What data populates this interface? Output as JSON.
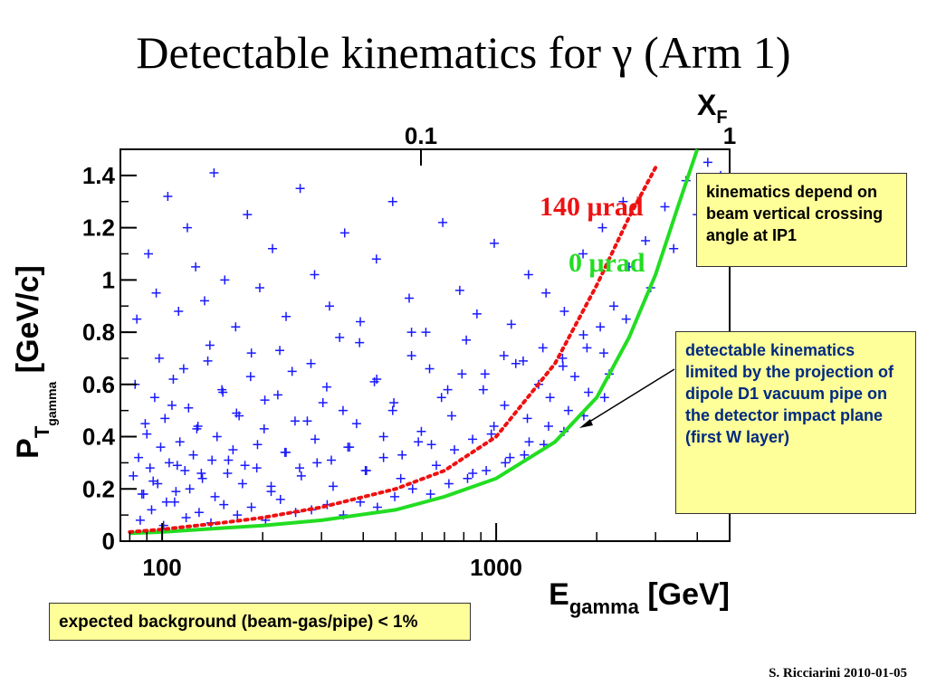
{
  "slide": {
    "title": "Detectable kinematics for γ (Arm 1)",
    "credit": "S. Ricciarini 2010-01-05"
  },
  "notes": {
    "kinematics_depend": "kinematics depend on beam vertical crossing angle at IP1",
    "detectable_limited": "detectable kinematics limited by the projection of dipole D1 vacuum pipe on the detector impact plane (first W layer)",
    "background": "expected background (beam-gas/pipe) < 1%"
  },
  "colors": {
    "points": "#1a1aff",
    "curve_0urad": "#22dd22",
    "curve_140urad": "#ee1111",
    "note_bg": "#ffff99"
  },
  "chart_data": {
    "type": "scatter",
    "x_scale": "log",
    "xlim": [
      75,
      5000
    ],
    "ylim": [
      0,
      1.5
    ],
    "xlabel_main": "E",
    "xlabel_sub": "gamma",
    "xlabel_unit": " [GeV]",
    "ylabel_main": "P",
    "ylabel_sub": "T",
    "ylabel_subsub": "gamma",
    "ylabel_unit": " [GeV/c]",
    "x_ticks": [
      {
        "value": 100,
        "label": "100"
      },
      {
        "value": 1000,
        "label": "1000"
      }
    ],
    "y_ticks": [
      {
        "value": 0,
        "label": "0"
      },
      {
        "value": 0.2,
        "label": "0.2"
      },
      {
        "value": 0.4,
        "label": "0.4"
      },
      {
        "value": 0.6,
        "label": "0.6"
      },
      {
        "value": 0.8,
        "label": "0.8"
      },
      {
        "value": 1,
        "label": "1"
      },
      {
        "value": 1.2,
        "label": "1.2"
      },
      {
        "value": 1.4,
        "label": "1.4"
      }
    ],
    "top_axis": {
      "label_main": "X",
      "label_sub": "F",
      "ticks": [
        {
          "value": 0.1,
          "label": "0.1"
        },
        {
          "value": 1,
          "label": "1"
        }
      ]
    },
    "series": [
      {
        "name": "0 μrad",
        "style": "solid",
        "x": [
          80,
          100,
          150,
          200,
          300,
          500,
          700,
          1000,
          1500,
          2000,
          2500,
          3000,
          3500,
          4000
        ],
        "y": [
          0.03,
          0.035,
          0.05,
          0.06,
          0.08,
          0.12,
          0.17,
          0.24,
          0.38,
          0.55,
          0.78,
          1.02,
          1.28,
          1.5
        ]
      },
      {
        "name": "140 μrad",
        "style": "dotted",
        "x": [
          80,
          100,
          150,
          200,
          300,
          500,
          700,
          1000,
          1500,
          2000,
          2500,
          3000
        ],
        "y": [
          0.035,
          0.045,
          0.07,
          0.09,
          0.13,
          0.2,
          0.27,
          0.4,
          0.68,
          0.98,
          1.24,
          1.43
        ]
      }
    ],
    "scatter": {
      "name": "events",
      "marker": "+",
      "x": [
        82,
        85,
        88,
        90,
        92,
        95,
        97,
        99,
        102,
        105,
        108,
        110,
        113,
        117,
        120,
        124,
        128,
        132,
        137,
        141,
        146,
        151,
        157,
        163,
        170,
        177,
        185,
        193,
        202,
        212,
        222,
        233,
        245,
        258,
        272,
        287,
        303,
        321,
        340,
        360,
        382,
        406,
        432,
        460,
        490,
        523,
        558,
        597,
        640,
        686,
        736,
        790,
        850,
        915,
        985,
        1060,
        1145,
        1240,
        1340,
        1450,
        1580,
        1720,
        1870,
        2050,
        2250,
        2500,
        2800,
        3200,
        3700,
        4300,
        84,
        91,
        96,
        104,
        112,
        119,
        126,
        134,
        143,
        154,
        166,
        180,
        196,
        214,
        235,
        259,
        286,
        317,
        352,
        392,
        438,
        490,
        549,
        616,
        692,
        778,
        876,
        987,
        1110,
        1250,
        1410,
        1600,
        1820,
        2080,
        2400,
        86,
        93,
        101,
        109,
        118,
        129,
        140,
        153,
        168,
        185,
        204,
        226,
        251,
        280,
        312,
        349,
        392,
        441,
        497,
        562,
        636,
        722,
        821,
        934,
        1065,
        1215,
        1390,
        1595,
        1830,
        2110,
        83,
        89,
        98,
        107,
        116,
        127,
        139,
        152,
        167,
        184,
        203,
        225,
        250,
        279,
        311,
        348,
        390,
        439,
        494,
        558,
        632,
        716,
        814,
        926,
        1055,
        1205,
        1380,
        1585,
        1825,
        2100,
        2450,
        2900,
        3400,
        4000,
        4700,
        87,
        94,
        103,
        111,
        121,
        131,
        144,
        158,
        174,
        192,
        212,
        235,
        261,
        291,
        325,
        364,
        409,
        460,
        518,
        585,
        662,
        750,
        851,
        967,
        1100,
        1255,
        1435,
        1645,
        1890,
        2180
      ],
      "y": [
        0.25,
        0.32,
        0.18,
        0.41,
        0.28,
        0.55,
        0.22,
        0.36,
        0.47,
        0.3,
        0.62,
        0.19,
        0.38,
        0.27,
        0.51,
        0.33,
        0.44,
        0.24,
        0.69,
        0.31,
        0.4,
        0.58,
        0.26,
        0.35,
        0.48,
        0.29,
        0.72,
        0.37,
        0.43,
        0.21,
        0.56,
        0.34,
        0.65,
        0.28,
        0.46,
        0.39,
        0.53,
        0.31,
        0.78,
        0.36,
        0.45,
        0.27,
        0.61,
        0.4,
        0.5,
        0.33,
        0.71,
        0.42,
        0.37,
        0.55,
        0.48,
        0.64,
        0.39,
        0.58,
        0.44,
        0.52,
        0.68,
        0.47,
        0.6,
        0.55,
        0.7,
        0.63,
        0.74,
        0.82,
        0.9,
        1.05,
        1.15,
        1.28,
        1.38,
        1.45,
        0.85,
        1.1,
        0.95,
        1.32,
        0.88,
        1.2,
        1.05,
        0.92,
        1.41,
        1.0,
        0.82,
        1.25,
        0.97,
        1.12,
        0.86,
        1.35,
        1.02,
        0.9,
        1.18,
        0.84,
        1.08,
        1.3,
        0.93,
        0.8,
        1.22,
        0.96,
        0.87,
        1.14,
        0.83,
        1.02,
        0.95,
        0.88,
        1.1,
        1.2,
        1.3,
        0.08,
        0.12,
        0.06,
        0.15,
        0.09,
        0.11,
        0.07,
        0.14,
        0.1,
        0.13,
        0.08,
        0.16,
        0.11,
        0.12,
        0.14,
        0.1,
        0.15,
        0.13,
        0.17,
        0.2,
        0.18,
        0.22,
        0.24,
        0.27,
        0.3,
        0.33,
        0.37,
        0.42,
        0.48,
        0.55,
        0.6,
        0.45,
        0.7,
        0.52,
        0.66,
        0.43,
        0.75,
        0.57,
        0.49,
        0.63,
        0.54,
        0.73,
        0.46,
        0.68,
        0.59,
        0.5,
        0.76,
        0.62,
        0.53,
        0.8,
        0.66,
        0.58,
        0.77,
        0.64,
        0.71,
        0.69,
        0.74,
        0.67,
        0.79,
        0.72,
        0.85,
        0.97,
        1.12,
        1.25,
        1.4,
        0.18,
        0.23,
        0.15,
        0.29,
        0.2,
        0.26,
        0.17,
        0.31,
        0.22,
        0.28,
        0.19,
        0.34,
        0.25,
        0.3,
        0.21,
        0.36,
        0.27,
        0.32,
        0.24,
        0.38,
        0.29,
        0.35,
        0.26,
        0.41,
        0.32,
        0.38,
        0.44,
        0.5,
        0.57,
        0.64
      ]
    }
  }
}
